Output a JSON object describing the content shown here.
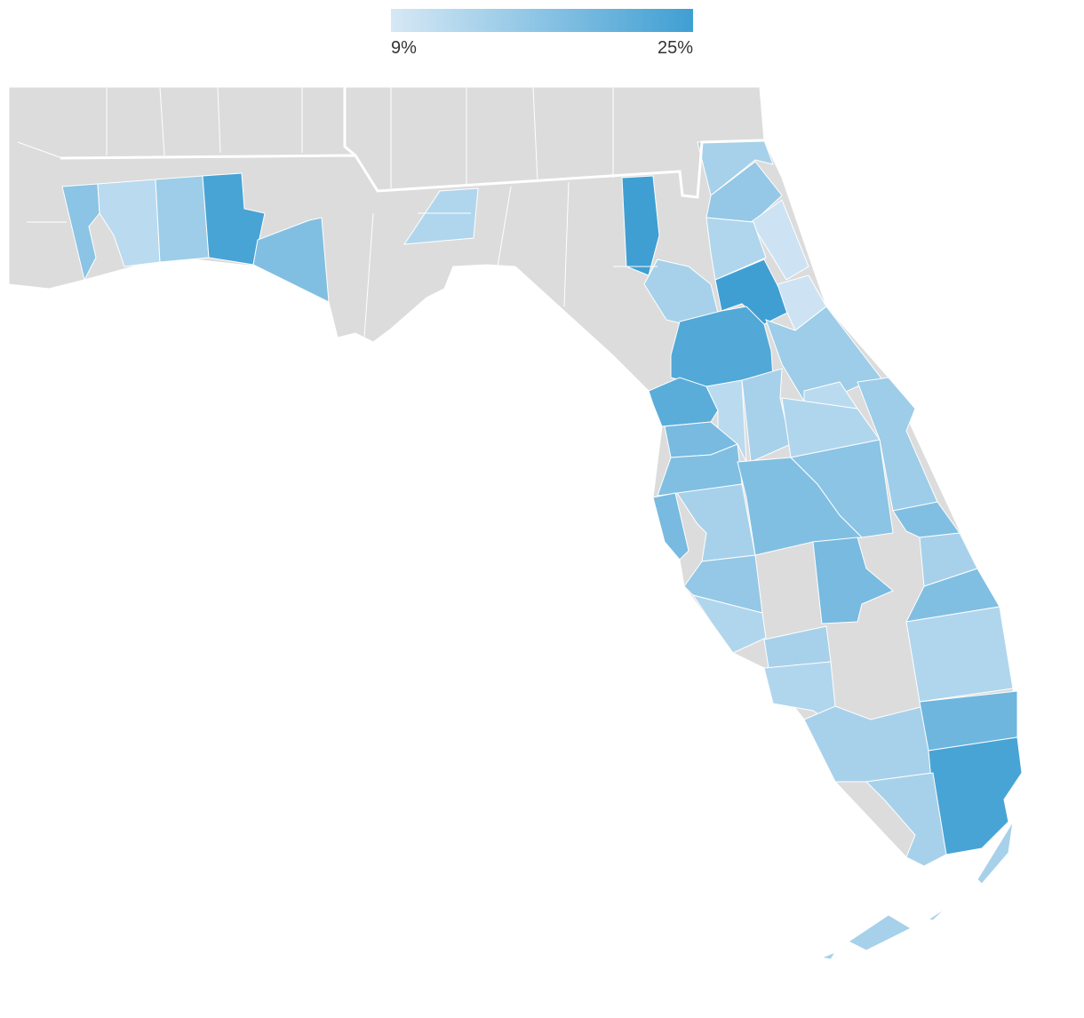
{
  "map": {
    "legend": {
      "ticks": [
        {
          "value": 9,
          "label": "9%"
        },
        {
          "value": 25,
          "label": "25%"
        }
      ],
      "colors": [
        "#d6e8f5",
        "#3f9fd3"
      ]
    },
    "county_values": [
      17,
      12,
      15,
      24,
      18,
      13,
      25,
      14,
      16,
      10,
      13,
      25,
      10,
      14,
      23,
      15,
      22,
      12,
      14,
      12,
      13,
      15,
      19,
      18,
      19,
      14,
      18,
      17,
      18,
      16,
      13,
      19,
      14,
      18,
      14,
      13,
      13,
      14,
      20,
      24,
      14,
      14
    ],
    "no_data_color": "#dcdcdc"
  }
}
